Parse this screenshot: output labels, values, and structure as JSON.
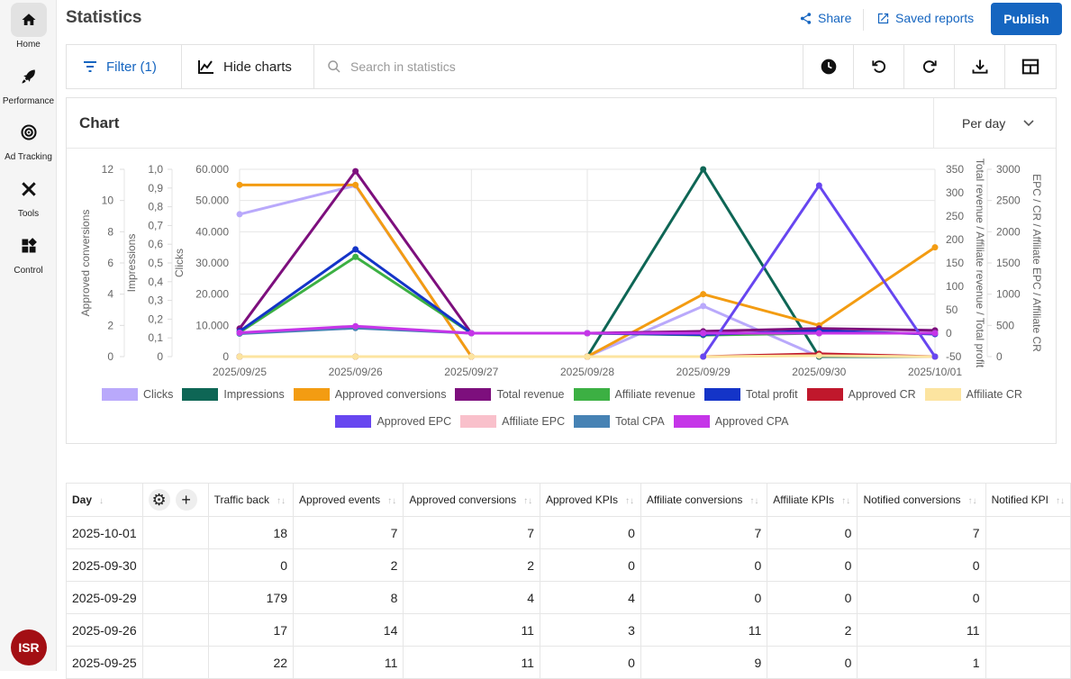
{
  "sidebar": {
    "items": [
      {
        "label": "Home",
        "icon": "home-icon",
        "active": true
      },
      {
        "label": "Performance",
        "icon": "rocket-icon"
      },
      {
        "label": "Ad Tracking",
        "icon": "target-icon"
      },
      {
        "label": "Tools",
        "icon": "tools-icon"
      },
      {
        "label": "Control",
        "icon": "dashboard-icon"
      }
    ],
    "avatar": "ISR"
  },
  "header": {
    "title": "Statistics",
    "share": "Share",
    "saved_reports": "Saved reports",
    "publish": "Publish"
  },
  "toolbar": {
    "filter": "Filter (1)",
    "hide_charts": "Hide charts",
    "search_placeholder": "Search in statistics"
  },
  "chart_card": {
    "title": "Chart",
    "period": "Per day"
  },
  "colors": {
    "accent": "#1565c0",
    "avatar": "#a30f14"
  },
  "chart_data": {
    "type": "line",
    "x": [
      "2025/09/25",
      "2025/09/26",
      "2025/09/27",
      "2025/09/28",
      "2025/09/29",
      "2025/09/30",
      "2025/10/01"
    ],
    "axes": {
      "conv": {
        "label": "Approved conversions",
        "range": [
          0,
          12
        ],
        "ticks": [
          "0",
          "2",
          "4",
          "6",
          "8",
          "10",
          "12"
        ]
      },
      "imp": {
        "label": "Impressions",
        "range": [
          0,
          1
        ],
        "ticks": [
          "0",
          "0,1",
          "0,2",
          "0,3",
          "0,4",
          "0,5",
          "0,6",
          "0,7",
          "0,8",
          "0,9",
          "1,0"
        ]
      },
      "clicks": {
        "label": "Clicks",
        "range": [
          0,
          60000
        ],
        "ticks": [
          "0",
          "10.000",
          "20.000",
          "30.000",
          "40.000",
          "50.000",
          "60.000"
        ]
      },
      "rev": {
        "label": "Total revenue / Affiliate revenue / Total profit",
        "range": [
          -50,
          350
        ],
        "ticks": [
          "-50",
          "0",
          "50",
          "100",
          "150",
          "200",
          "250",
          "300",
          "350"
        ]
      },
      "epc": {
        "label": "EPC / CR / Affiliate EPC / Affiliate CR",
        "range": [
          0,
          3000
        ],
        "ticks": [
          "0",
          "500",
          "1000",
          "1500",
          "2000",
          "2500",
          "3000"
        ]
      }
    },
    "grid": true,
    "legend": "bottom",
    "series": [
      {
        "name": "Clicks",
        "color": "#b9a9fb",
        "axis": "clicks",
        "values": [
          45600,
          54800,
          0,
          0,
          16200,
          0,
          0
        ]
      },
      {
        "name": "Impressions",
        "color": "#0e6655",
        "axis": "imp",
        "values": [
          0,
          0,
          0,
          0,
          1,
          0,
          0
        ]
      },
      {
        "name": "Approved conversions",
        "color": "#f39c12",
        "axis": "conv",
        "values": [
          11,
          11,
          0,
          0,
          4,
          2,
          7
        ]
      },
      {
        "name": "Total revenue",
        "color": "#7d0f7d",
        "axis": "rev",
        "values": [
          10,
          346,
          0,
          0,
          4,
          10,
          6
        ]
      },
      {
        "name": "Affiliate revenue",
        "color": "#3cb043",
        "axis": "rev",
        "values": [
          2,
          163,
          0,
          0,
          -4,
          0,
          0
        ]
      },
      {
        "name": "Total profit",
        "color": "#1434c8",
        "axis": "rev",
        "values": [
          4,
          179,
          0,
          0,
          -3,
          5,
          -2
        ]
      },
      {
        "name": "Approved CR",
        "color": "#c0182c",
        "axis": "epc",
        "values": [
          0,
          0,
          0,
          0,
          0,
          45,
          0
        ]
      },
      {
        "name": "Affiliate CR",
        "color": "#fce4a0",
        "axis": "epc",
        "values": [
          0,
          0,
          0,
          0,
          0,
          15,
          0
        ]
      },
      {
        "name": "Approved EPC",
        "color": "#6746f0",
        "axis": "epc",
        "values": [
          null,
          null,
          null,
          null,
          0,
          2740,
          0
        ]
      },
      {
        "name": "Affiliate EPC",
        "color": "#f9c0cb",
        "axis": "rev",
        "values": [
          1,
          14,
          0,
          0,
          0,
          0,
          0
        ]
      },
      {
        "name": "Total CPA",
        "color": "#4682b4",
        "axis": "rev",
        "values": [
          -1,
          11,
          0,
          0,
          0,
          0,
          0
        ]
      },
      {
        "name": "Approved CPA",
        "color": "#c535e8",
        "axis": "rev",
        "values": [
          1,
          15,
          0,
          0,
          0,
          0,
          0
        ]
      }
    ]
  },
  "table": {
    "columns": [
      "Day",
      "Traffic back",
      "Approved events",
      "Approved conversions",
      "Approved KPIs",
      "Affiliate conversions",
      "Affiliate KPIs",
      "Notified conversions",
      "Notified KPI"
    ],
    "rows": [
      [
        "2025-10-01",
        "18",
        "7",
        "7",
        "0",
        "7",
        "0",
        "7",
        ""
      ],
      [
        "2025-09-30",
        "0",
        "2",
        "2",
        "0",
        "0",
        "0",
        "0",
        ""
      ],
      [
        "2025-09-29",
        "179",
        "8",
        "4",
        "4",
        "0",
        "0",
        "0",
        ""
      ],
      [
        "2025-09-26",
        "17",
        "14",
        "11",
        "3",
        "11",
        "2",
        "11",
        ""
      ],
      [
        "2025-09-25",
        "22",
        "11",
        "11",
        "0",
        "9",
        "0",
        "1",
        ""
      ]
    ]
  }
}
